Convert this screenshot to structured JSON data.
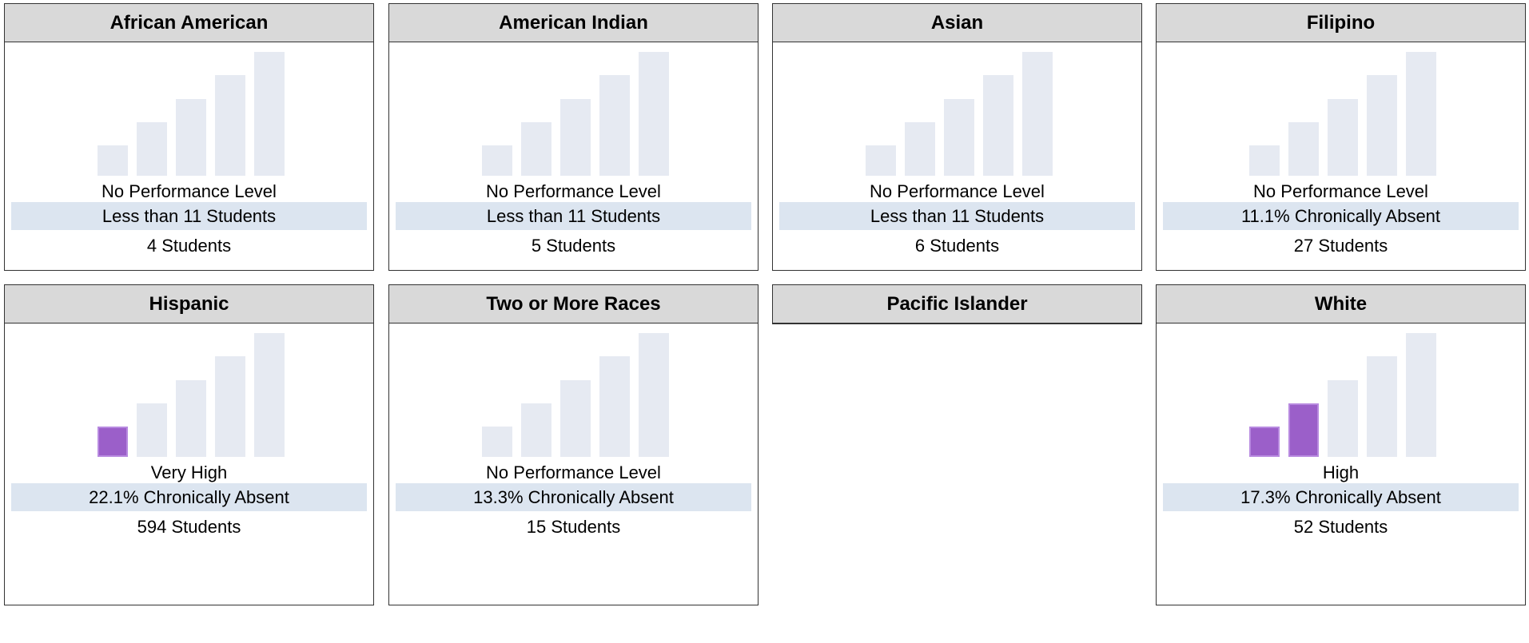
{
  "cards": [
    {
      "title": "African American",
      "level": "No Performance Level",
      "rate": "Less than 11 Students",
      "students": "4 Students",
      "filled": 0
    },
    {
      "title": "American Indian",
      "level": "No Performance Level",
      "rate": "Less than 11 Students",
      "students": "5 Students",
      "filled": 0
    },
    {
      "title": "Asian",
      "level": "No Performance Level",
      "rate": "Less than 11 Students",
      "students": "6 Students",
      "filled": 0
    },
    {
      "title": "Filipino",
      "level": "No Performance Level",
      "rate": "11.1% Chronically Absent",
      "students": "27 Students",
      "filled": 0
    },
    {
      "title": "Hispanic",
      "level": "Very High",
      "rate": "22.1% Chronically Absent",
      "students": "594 Students",
      "filled": 1
    },
    {
      "title": "Two or More Races",
      "level": "No Performance Level",
      "rate": "13.3% Chronically Absent",
      "students": "15 Students",
      "filled": 0
    },
    {
      "title": "Pacific Islander"
    },
    {
      "title": "White",
      "level": "High",
      "rate": "17.3% Chronically Absent",
      "students": "52 Students",
      "filled": 2
    }
  ]
}
